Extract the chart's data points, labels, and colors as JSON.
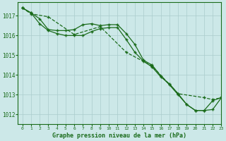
{
  "title": "Graphe pression niveau de la mer (hPa)",
  "background_color": "#cce8e8",
  "grid_color": "#aacccc",
  "line_color": "#1a6b1a",
  "xlim": [
    -0.5,
    23
  ],
  "ylim": [
    1011.5,
    1017.7
  ],
  "yticks": [
    1012,
    1013,
    1014,
    1015,
    1016,
    1017
  ],
  "xticks": [
    0,
    1,
    2,
    3,
    4,
    5,
    6,
    7,
    8,
    9,
    10,
    11,
    12,
    13,
    14,
    15,
    16,
    17,
    18,
    19,
    20,
    21,
    22,
    23
  ],
  "series1_x": [
    0,
    1,
    2,
    3,
    4,
    5,
    6,
    7,
    8,
    9,
    10,
    11,
    12,
    13,
    14,
    15,
    16,
    17,
    18,
    19,
    20,
    21,
    22,
    23
  ],
  "series1_y": [
    1017.4,
    1017.15,
    1016.85,
    1016.3,
    1016.25,
    1016.25,
    1016.3,
    1016.55,
    1016.6,
    1016.5,
    1016.55,
    1016.55,
    1016.1,
    1015.55,
    1014.75,
    1014.5,
    1013.95,
    1013.5,
    1013.0,
    1012.5,
    1012.2,
    1012.2,
    1012.7,
    1012.85
  ],
  "series2_x": [
    0,
    1,
    2,
    3,
    4,
    5,
    6,
    7,
    8,
    9,
    10,
    11,
    12,
    13,
    14,
    15,
    16,
    17,
    18,
    19,
    20,
    21,
    22,
    23
  ],
  "series2_y": [
    1017.4,
    1017.15,
    1016.6,
    1016.25,
    1016.1,
    1016.0,
    1016.0,
    1016.0,
    1016.2,
    1016.35,
    1016.4,
    1016.4,
    1015.8,
    1015.15,
    1014.7,
    1014.4,
    1013.9,
    1013.55,
    1013.05,
    1012.5,
    1012.2,
    1012.2,
    1012.25,
    1012.85
  ],
  "series3_x": [
    0,
    1,
    3,
    6,
    9,
    12,
    15,
    18,
    21,
    22,
    23
  ],
  "series3_y": [
    1017.4,
    1017.1,
    1016.95,
    1016.05,
    1016.45,
    1015.15,
    1014.45,
    1013.05,
    1012.85,
    1012.75,
    1012.85
  ]
}
